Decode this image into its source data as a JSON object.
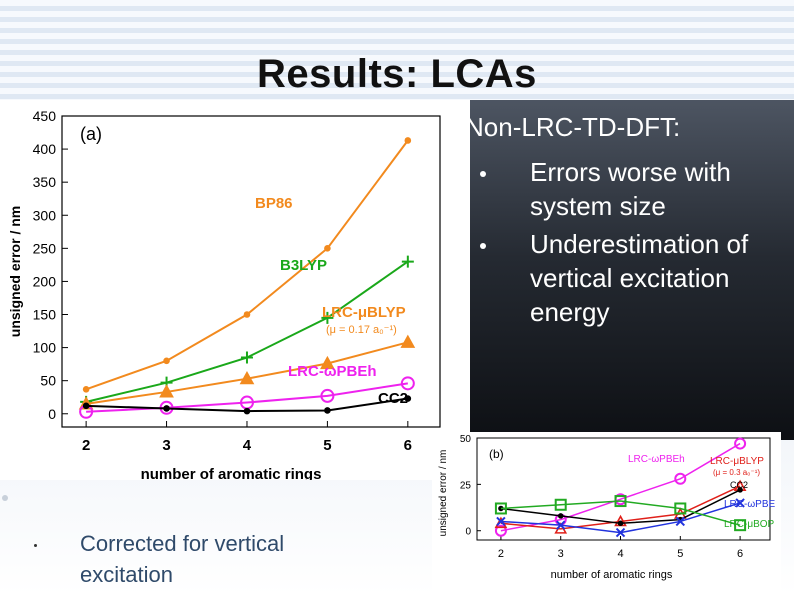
{
  "slide": {
    "title": "Results: LCAs",
    "right_heading": "Non-LRC-TD-DFT:",
    "right_bullets": [
      "Errors worse with system size",
      "Underestimation of vertical excitation energy"
    ],
    "footer_bullet": "Corrected for vertical excitation"
  },
  "chart_data": [
    {
      "type": "line",
      "panel_label": "(a)",
      "xlabel": "number of aromatic rings",
      "ylabel": "unsigned error / nm",
      "x": [
        2,
        3,
        4,
        5,
        6
      ],
      "xlim": [
        1.7,
        6.4
      ],
      "ylim": [
        -20,
        450
      ],
      "yticks": [
        0,
        50,
        100,
        150,
        200,
        250,
        300,
        350,
        400,
        450
      ],
      "xticks": [
        2,
        3,
        4,
        5,
        6
      ],
      "series": [
        {
          "name": "BP86",
          "label": "BP86",
          "color": "#f28a1e",
          "marker": "dot",
          "values": [
            37,
            80,
            150,
            250,
            413
          ]
        },
        {
          "name": "B3LYP",
          "label": "B3LYP",
          "color": "#1aa81a",
          "marker": "plus",
          "values": [
            18,
            47,
            85,
            145,
            230
          ]
        },
        {
          "name": "LRC-μBLYP",
          "label": "LRC-μBLYP",
          "sublabel": "(μ = 0.17 a₀⁻¹)",
          "color": "#f28a1e",
          "marker": "triangle",
          "values": [
            15,
            33,
            53,
            76,
            108
          ]
        },
        {
          "name": "LRC-ωPBEh",
          "label": "LRC-ωPBEh",
          "color": "#ee22ee",
          "marker": "circle",
          "values": [
            3,
            9,
            17,
            27,
            46
          ]
        },
        {
          "name": "CC2",
          "label": "CC2",
          "color": "#000000",
          "marker": "dot",
          "values": [
            12,
            8,
            4,
            5,
            23
          ]
        }
      ]
    },
    {
      "type": "line",
      "panel_label": "(b)",
      "xlabel": "number of aromatic rings",
      "ylabel": "unsigned error / nm",
      "x": [
        2,
        3,
        4,
        5,
        6
      ],
      "xlim": [
        1.6,
        6.5
      ],
      "ylim": [
        -5,
        50
      ],
      "yticks": [
        0,
        25,
        50
      ],
      "xticks": [
        2,
        3,
        4,
        5,
        6
      ],
      "series": [
        {
          "name": "LRC-ωPBEh",
          "label": "LRC-ωPBEh",
          "color": "#ee22ee",
          "marker": "circle",
          "values": [
            0,
            6,
            17,
            28,
            47
          ]
        },
        {
          "name": "LRC-μBLYP",
          "label": "LRC-μBLYP",
          "sublabel": "(μ = 0.3 a₀⁻¹)",
          "color": "#e0201a",
          "marker": "triangle",
          "values": [
            4,
            1,
            5,
            9,
            24
          ]
        },
        {
          "name": "CC2",
          "label": "CC2",
          "color": "#000000",
          "marker": "dot",
          "values": [
            12,
            8,
            4,
            6,
            22
          ]
        },
        {
          "name": "LRC-ωPBE",
          "label": "LRC-ωPBE",
          "color": "#2233dd",
          "marker": "x",
          "values": [
            5,
            3,
            -1,
            5,
            15
          ]
        },
        {
          "name": "LRC-μBOP",
          "label": "LRC-μBOP",
          "color": "#22aa22",
          "marker": "square",
          "values": [
            12,
            14,
            16,
            12,
            3
          ]
        }
      ]
    }
  ]
}
